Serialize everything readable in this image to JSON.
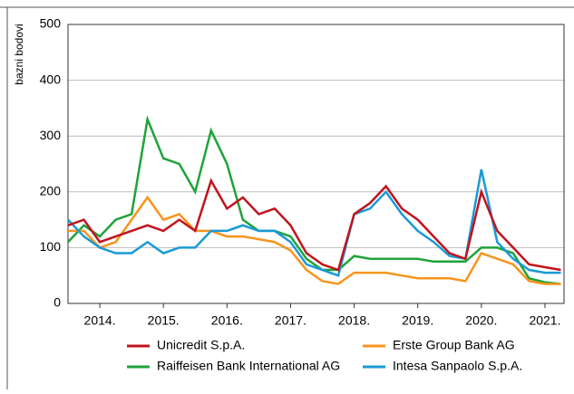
{
  "chart_data": {
    "type": "line",
    "y_label": "bazni bodovi",
    "x": [
      2013.5,
      2013.75,
      2014.0,
      2014.25,
      2014.5,
      2014.75,
      2015.0,
      2015.25,
      2015.5,
      2015.75,
      2016.0,
      2016.25,
      2016.5,
      2016.75,
      2017.0,
      2017.25,
      2017.5,
      2017.75,
      2018.0,
      2018.25,
      2018.5,
      2018.75,
      2019.0,
      2019.25,
      2019.5,
      2019.75,
      2020.0,
      2020.25,
      2020.5,
      2020.75,
      2021.0,
      2021.25
    ],
    "series": [
      {
        "name": "Unicredit S.p.A.",
        "color": "#c0141e",
        "values": [
          140,
          150,
          110,
          120,
          130,
          140,
          130,
          150,
          130,
          220,
          170,
          190,
          160,
          170,
          140,
          90,
          70,
          60,
          160,
          180,
          210,
          170,
          150,
          120,
          90,
          80,
          200,
          130,
          100,
          70,
          65,
          60
        ]
      },
      {
        "name": "Erste Group Bank AG",
        "color": "#f7941d",
        "values": [
          130,
          130,
          100,
          110,
          150,
          190,
          150,
          160,
          130,
          130,
          120,
          120,
          115,
          110,
          95,
          60,
          40,
          35,
          55,
          55,
          55,
          50,
          45,
          45,
          45,
          40,
          90,
          80,
          70,
          40,
          35,
          35
        ]
      },
      {
        "name": "Raiffeisen Bank International AG",
        "color": "#1fa33a",
        "values": [
          110,
          140,
          120,
          150,
          160,
          330,
          260,
          250,
          200,
          310,
          250,
          150,
          130,
          130,
          120,
          80,
          60,
          60,
          85,
          80,
          80,
          80,
          80,
          75,
          75,
          75,
          100,
          100,
          90,
          45,
          38,
          35
        ]
      },
      {
        "name": "Intesa Sanpaolo S.p.A.",
        "color": "#1a9ad6",
        "values": [
          150,
          120,
          100,
          90,
          90,
          110,
          90,
          100,
          100,
          130,
          130,
          140,
          130,
          130,
          110,
          70,
          60,
          50,
          160,
          170,
          200,
          160,
          130,
          110,
          85,
          80,
          240,
          110,
          80,
          60,
          55,
          55
        ]
      }
    ],
    "xlim": [
      2013.5,
      2021.3
    ],
    "xticks": [
      {
        "value": 2014,
        "label": "2014."
      },
      {
        "value": 2015,
        "label": "2015."
      },
      {
        "value": 2016,
        "label": "2016."
      },
      {
        "value": 2017,
        "label": "2017."
      },
      {
        "value": 2018,
        "label": "2018."
      },
      {
        "value": 2019,
        "label": "2019."
      },
      {
        "value": 2020,
        "label": "2020."
      },
      {
        "value": 2021,
        "label": "2021."
      }
    ],
    "ylim": [
      0,
      500
    ],
    "yticks": [
      0,
      100,
      200,
      300,
      400,
      500
    ],
    "grid": true
  }
}
